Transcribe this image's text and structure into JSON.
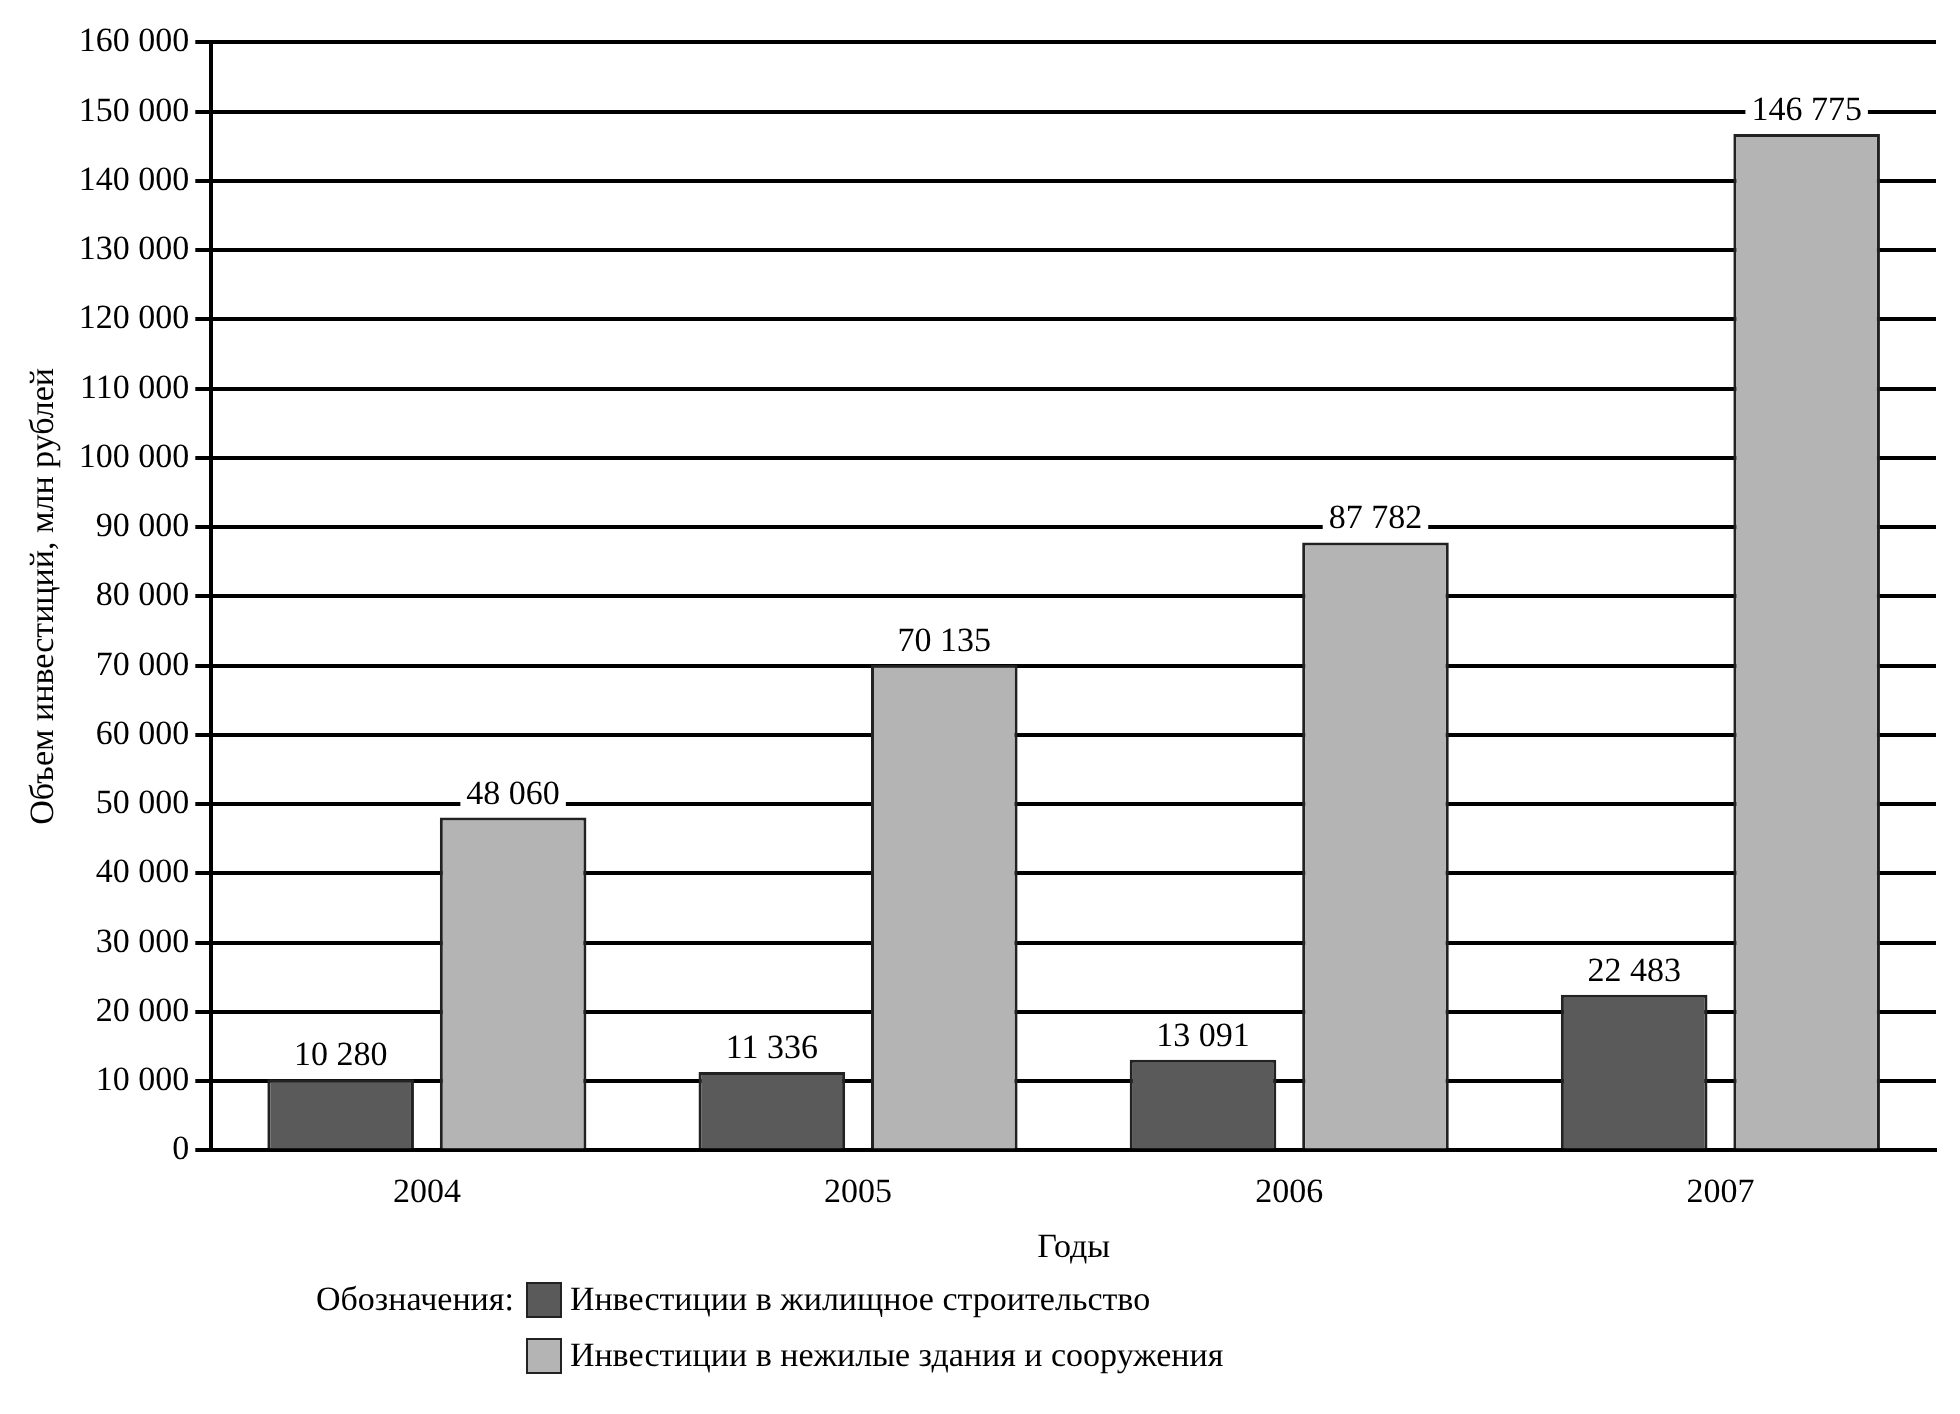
{
  "chart_data": {
    "type": "bar",
    "xlabel": "Годы",
    "ylabel": "Объем инвестиций, млн рублей",
    "legend_title": "Обозначения:",
    "categories": [
      "2004",
      "2005",
      "2006",
      "2007"
    ],
    "series": [
      {
        "name": "Инвестиции в жилищное строительство",
        "color": "#5a5a5a",
        "values": [
          10280,
          11336,
          13091,
          22483
        ],
        "value_labels": [
          "10 280",
          "11 336",
          "13 091",
          "22 483"
        ]
      },
      {
        "name": "Инвестиции в нежилые здания и сооружения",
        "color": "#b4b4b4",
        "values": [
          48060,
          70135,
          87782,
          146775
        ],
        "value_labels": [
          "48 060",
          "70 135",
          "87 782",
          "146 775"
        ]
      }
    ],
    "ylim": [
      0,
      160000
    ],
    "yticks": [
      {
        "value": 0,
        "label": "0"
      },
      {
        "value": 10000,
        "label": "10 000"
      },
      {
        "value": 20000,
        "label": "20 000"
      },
      {
        "value": 30000,
        "label": "30 000"
      },
      {
        "value": 40000,
        "label": "40 000"
      },
      {
        "value": 50000,
        "label": "50 000"
      },
      {
        "value": 60000,
        "label": "60 000"
      },
      {
        "value": 70000,
        "label": "70 000"
      },
      {
        "value": 80000,
        "label": "80 000"
      },
      {
        "value": 90000,
        "label": "90 000"
      },
      {
        "value": 100000,
        "label": "100 000"
      },
      {
        "value": 110000,
        "label": "110 000"
      },
      {
        "value": 120000,
        "label": "120 000"
      },
      {
        "value": 130000,
        "label": "130 000"
      },
      {
        "value": 140000,
        "label": "140 000"
      },
      {
        "value": 150000,
        "label": "150 000"
      },
      {
        "value": 160000,
        "label": "160 000"
      }
    ],
    "grid": "y",
    "legend": "bottom"
  }
}
